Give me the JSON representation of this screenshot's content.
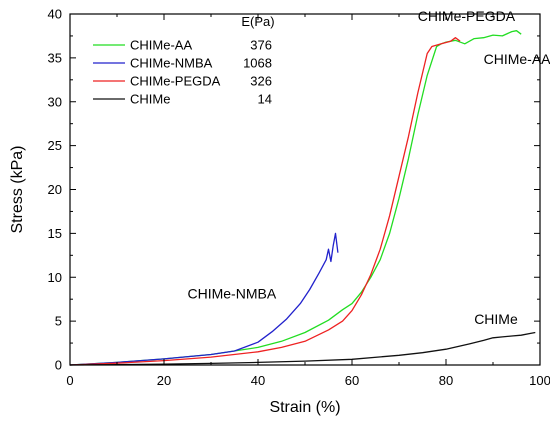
{
  "chart_data": {
    "type": "line",
    "xlabel": "Strain (%)",
    "ylabel": "Stress (kPa)",
    "xlim": [
      0,
      100
    ],
    "ylim": [
      0,
      40
    ],
    "xticks": [
      0,
      20,
      40,
      60,
      80,
      100
    ],
    "yticks": [
      0,
      5,
      10,
      15,
      20,
      25,
      30,
      35,
      40
    ],
    "grid": false,
    "legend_position": "top-left",
    "legend_header": "E(Pa)",
    "series": [
      {
        "name": "CHIMe-AA",
        "modulus": "376",
        "color": "#22dd22",
        "x": [
          0,
          10,
          20,
          30,
          40,
          45,
          50,
          55,
          58,
          60,
          62,
          64,
          66,
          68,
          70,
          72,
          74,
          76,
          78,
          79,
          80,
          82,
          84,
          86,
          88,
          90,
          92,
          94,
          95,
          96
        ],
        "y": [
          0,
          0.3,
          0.7,
          1.2,
          2.0,
          2.7,
          3.7,
          5.1,
          6.3,
          7.0,
          8.3,
          10.0,
          12.0,
          15.0,
          19.0,
          23.5,
          28.5,
          33.0,
          36.3,
          36.6,
          36.8,
          37.0,
          36.6,
          37.2,
          37.3,
          37.6,
          37.5,
          38.0,
          38.1,
          37.7
        ]
      },
      {
        "name": "CHIMe-NMBA",
        "modulus": "1068",
        "color": "#2222cc",
        "x": [
          0,
          10,
          20,
          30,
          35,
          40,
          43,
          46,
          49,
          51,
          53,
          54.5,
          55,
          55.5,
          56,
          56.5,
          57
        ],
        "y": [
          0,
          0.3,
          0.7,
          1.2,
          1.6,
          2.6,
          3.8,
          5.2,
          7.0,
          8.6,
          10.5,
          12.0,
          13.2,
          11.8,
          13.6,
          15.0,
          12.8
        ]
      },
      {
        "name": "CHIMe-PEGDA",
        "modulus": "326",
        "color": "#ee2222",
        "x": [
          0,
          10,
          20,
          30,
          40,
          45,
          50,
          55,
          58,
          60,
          62,
          64,
          66,
          68,
          70,
          72,
          74,
          76,
          77,
          79,
          81,
          82,
          83
        ],
        "y": [
          0,
          0.2,
          0.5,
          0.9,
          1.5,
          2.0,
          2.7,
          4.0,
          5.0,
          6.2,
          8.0,
          10.3,
          13.2,
          17.0,
          21.5,
          26.0,
          31.0,
          35.5,
          36.3,
          36.6,
          36.9,
          37.3,
          36.9
        ]
      },
      {
        "name": "CHIMe",
        "modulus": "14",
        "color": "#111111",
        "x": [
          0,
          10,
          20,
          30,
          40,
          50,
          60,
          70,
          75,
          80,
          85,
          88,
          90,
          92,
          94,
          96,
          98,
          99
        ],
        "y": [
          0,
          0.05,
          0.1,
          0.18,
          0.3,
          0.45,
          0.65,
          1.1,
          1.4,
          1.8,
          2.4,
          2.8,
          3.1,
          3.2,
          3.3,
          3.4,
          3.6,
          3.7
        ]
      }
    ],
    "annotations": [
      {
        "text": "CHIMe-PEGDA",
        "x": 74,
        "y": 39.2
      },
      {
        "text": "CHIMe-AA",
        "x": 88,
        "y": 34.3
      },
      {
        "text": "CHIMe-NMBA",
        "x": 25,
        "y": 7.6
      },
      {
        "text": "CHIMe",
        "x": 86,
        "y": 4.7
      }
    ]
  }
}
